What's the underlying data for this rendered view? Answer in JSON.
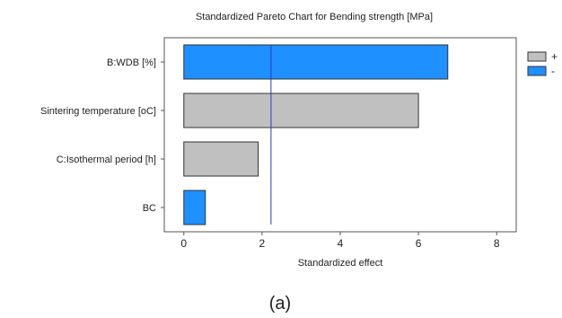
{
  "chart_data": {
    "type": "bar",
    "orientation": "horizontal",
    "title": "Standardized Pareto Chart for Bending strength [MPa]",
    "xlabel": "Standardized effect",
    "ylabel": "",
    "xlim": [
      -0.5,
      8.5
    ],
    "xticks": [
      "0",
      "2",
      "4",
      "6",
      "8"
    ],
    "xtick_values": [
      0,
      2,
      4,
      6,
      8
    ],
    "categories": [
      "B:WDB [%]",
      "Sintering temperature [oC]",
      "C:Isothermal period [h]",
      "BC"
    ],
    "values": [
      6.75,
      6.0,
      1.9,
      0.55
    ],
    "signs": [
      "-",
      "+",
      "+",
      "-"
    ],
    "reference_line": 2.23,
    "legend": {
      "position": "right",
      "entries": [
        {
          "label": "+",
          "color": "#c0c0c0"
        },
        {
          "label": "-",
          "color": "#1e90ff"
        }
      ]
    },
    "colors": {
      "positive": "#c0c0c0",
      "negative": "#1e90ff",
      "reference": "#3333cc"
    },
    "grid": false
  },
  "caption": "(a)"
}
